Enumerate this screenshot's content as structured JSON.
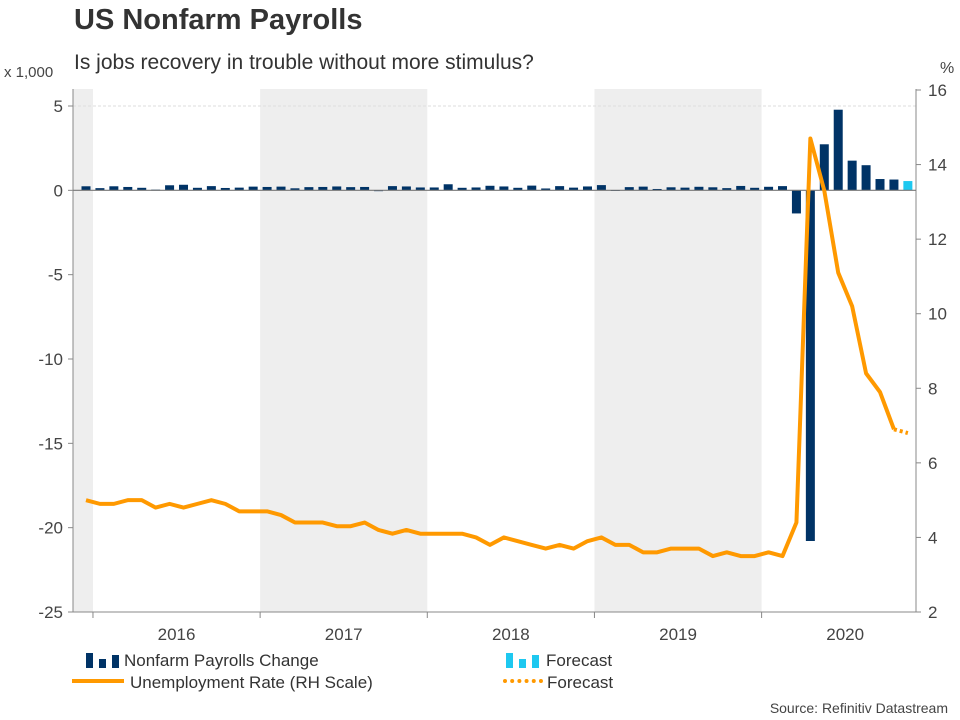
{
  "header": {
    "title": "US Nonfarm Payrolls",
    "subtitle": "Is jobs recovery in trouble without more stimulus?",
    "left_unit": "x 1,000",
    "right_unit": "%"
  },
  "source": "Source: Refinitiv Datastream",
  "chart_data": {
    "type": "bar+line",
    "title": "US Nonfarm Payrolls",
    "subtitle": "Is jobs recovery in trouble without more stimulus?",
    "x_start": "Dec 2015",
    "x_end": "Nov 2020",
    "x_ticks": [
      "2016",
      "2017",
      "2018",
      "2019",
      "2020"
    ],
    "shaded_years": [
      "2015",
      "2017",
      "2019"
    ],
    "left_axis": {
      "label": "x 1,000",
      "ylim": [
        -25,
        5
      ],
      "ticks": [
        "5",
        "0",
        "-5",
        "-10",
        "-15",
        "-20",
        "-25"
      ]
    },
    "right_axis": {
      "label": "%",
      "ylim": [
        2,
        16
      ],
      "ticks": [
        "16",
        "14",
        "12",
        "10",
        "8",
        "6",
        "4",
        "2"
      ]
    },
    "series": [
      {
        "name": "Nonfarm Payrolls Change",
        "type": "bar",
        "axis": "left",
        "color": "#003366",
        "values": [
          0.24,
          0.13,
          0.24,
          0.2,
          0.15,
          0.04,
          0.3,
          0.33,
          0.15,
          0.25,
          0.14,
          0.16,
          0.22,
          0.2,
          0.22,
          0.12,
          0.19,
          0.2,
          0.23,
          0.19,
          0.2,
          0.01,
          0.25,
          0.23,
          0.17,
          0.17,
          0.36,
          0.15,
          0.17,
          0.27,
          0.23,
          0.15,
          0.28,
          0.11,
          0.25,
          0.16,
          0.23,
          0.31,
          0.02,
          0.19,
          0.22,
          0.08,
          0.18,
          0.16,
          0.21,
          0.18,
          0.13,
          0.26,
          0.15,
          0.21,
          0.25,
          -1.37,
          -20.79,
          2.73,
          4.78,
          1.76,
          1.49,
          0.67,
          0.64
        ]
      },
      {
        "name": "Forecast",
        "type": "bar",
        "axis": "left",
        "color": "#1ec8f0",
        "values_from_index": 59,
        "values": [
          0.55
        ]
      },
      {
        "name": "Unemployment Rate (RH Scale)",
        "type": "line",
        "axis": "right",
        "color": "#ff9900",
        "values": [
          5.0,
          4.9,
          4.9,
          5.0,
          5.0,
          4.8,
          4.9,
          4.8,
          4.9,
          5.0,
          4.9,
          4.7,
          4.7,
          4.7,
          4.6,
          4.4,
          4.4,
          4.4,
          4.3,
          4.3,
          4.4,
          4.2,
          4.1,
          4.2,
          4.1,
          4.1,
          4.1,
          4.1,
          4.0,
          3.8,
          4.0,
          3.9,
          3.8,
          3.7,
          3.8,
          3.7,
          3.9,
          4.0,
          3.8,
          3.8,
          3.6,
          3.6,
          3.7,
          3.7,
          3.7,
          3.5,
          3.6,
          3.5,
          3.5,
          3.6,
          3.5,
          4.4,
          14.7,
          13.3,
          11.1,
          10.2,
          8.4,
          7.9,
          6.9
        ]
      },
      {
        "name": "Forecast",
        "type": "line",
        "style": "dotted",
        "axis": "right",
        "color": "#ff9900",
        "values_from_index": 58,
        "values": [
          6.9,
          6.8
        ]
      }
    ],
    "legend": [
      "Nonfarm Payrolls Change",
      "Forecast",
      "Unemployment Rate (RH Scale)",
      "Forecast"
    ],
    "legend_position": "bottom"
  }
}
